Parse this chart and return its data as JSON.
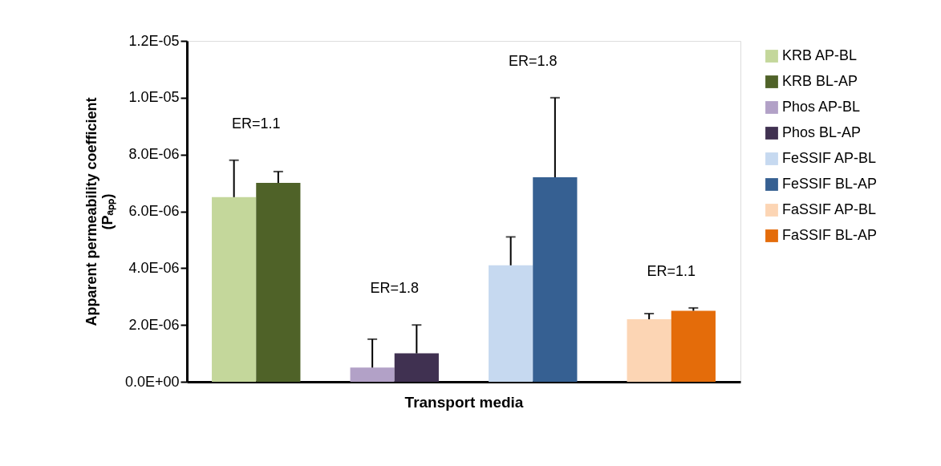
{
  "chart_data": {
    "type": "bar",
    "xlabel": "Transport media",
    "ylabel": "Apparent  permeability coefficient (Pₐₚₚ)",
    "categories": [
      null,
      null,
      null,
      null
    ],
    "series": [
      {
        "name": "KRB AP-BL",
        "color": "#c4d79b",
        "values": [
          6.5e-06,
          null,
          null,
          null
        ],
        "errors": [
          1.3e-06,
          null,
          null,
          null
        ]
      },
      {
        "name": "KRB BL-AP",
        "color": "#4f6228",
        "values": [
          7e-06,
          null,
          null,
          null
        ],
        "errors": [
          4e-07,
          null,
          null,
          null
        ]
      },
      {
        "name": "Phos AP-BL",
        "color": "#b2a1c7",
        "values": [
          null,
          5e-07,
          null,
          null
        ],
        "errors": [
          null,
          1e-06,
          null,
          null
        ]
      },
      {
        "name": "Phos BL-AP",
        "color": "#403151",
        "values": [
          null,
          1e-06,
          null,
          null
        ],
        "errors": [
          null,
          1e-06,
          null,
          null
        ]
      },
      {
        "name": "FeSSIF AP-BL",
        "color": "#c6d9f0",
        "values": [
          null,
          null,
          4.1e-06,
          null
        ],
        "errors": [
          null,
          null,
          1e-06,
          null
        ]
      },
      {
        "name": "FeSSIF BL-AP",
        "color": "#366092",
        "values": [
          null,
          null,
          7.2e-06,
          null
        ],
        "errors": [
          null,
          null,
          2.8e-06,
          null
        ]
      },
      {
        "name": "FaSSIF AP-BL",
        "color": "#fcd5b4",
        "values": [
          null,
          null,
          null,
          2.2e-06
        ],
        "errors": [
          null,
          null,
          null,
          2e-07
        ]
      },
      {
        "name": "FaSSIF BL-AP",
        "color": "#e46c0a",
        "values": [
          null,
          null,
          null,
          2.5e-06
        ],
        "errors": [
          null,
          null,
          null,
          1e-07
        ]
      }
    ],
    "ylim": [
      0,
      1.2e-05
    ],
    "yticks": [
      {
        "value": 0,
        "label": "0.0E+00"
      },
      {
        "value": 2e-06,
        "label": "2.0E-06"
      },
      {
        "value": 4e-06,
        "label": "4.0E-06"
      },
      {
        "value": 6e-06,
        "label": "6.0E-06"
      },
      {
        "value": 8e-06,
        "label": "8.0E-06"
      },
      {
        "value": 1e-05,
        "label": "1.0E-05"
      },
      {
        "value": 1.2e-05,
        "label": "1.2E-05"
      }
    ],
    "annotations": [
      "ER=1.1",
      "ER=1.8",
      "ER=1.8",
      "ER=1.1"
    ],
    "grid": false,
    "legend": "right"
  }
}
